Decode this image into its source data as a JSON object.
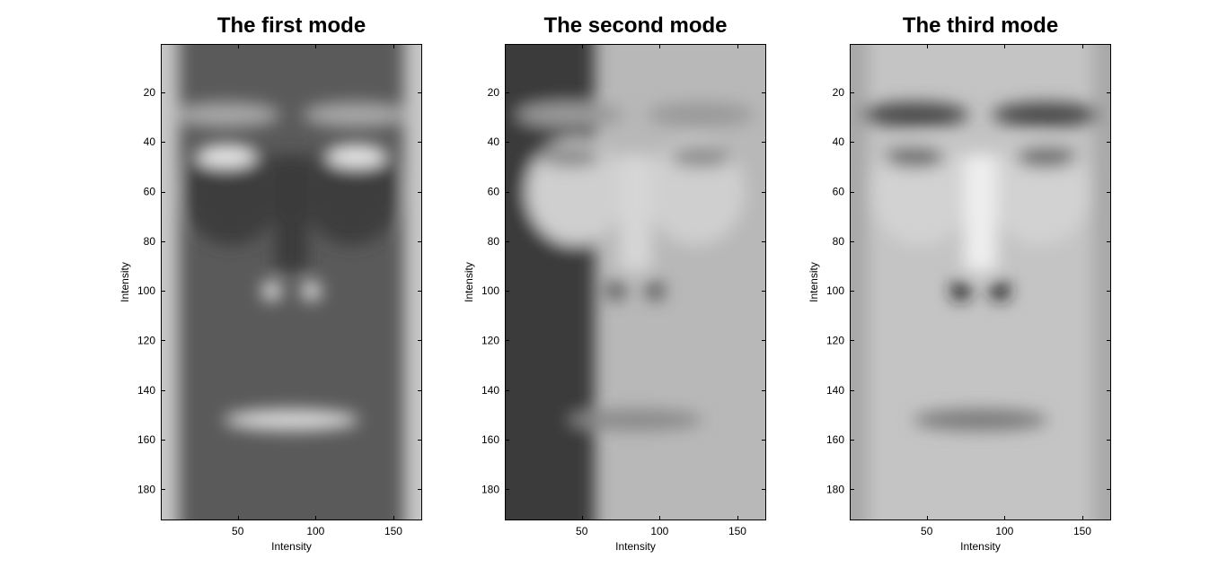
{
  "chart_data": [
    {
      "type": "heatmap",
      "title": "The first mode",
      "xlabel": "Intensity",
      "ylabel": "Intensity",
      "xlim": [
        0.5,
        168.5
      ],
      "ylim": [
        0.5,
        192.5
      ],
      "y_reversed": true,
      "xticks": [
        50,
        100,
        150
      ],
      "yticks": [
        20,
        40,
        60,
        80,
        100,
        120,
        140,
        160,
        180
      ],
      "colormap": "gray",
      "image": "face-eigenmode-1"
    },
    {
      "type": "heatmap",
      "title": "The second mode",
      "xlabel": "Intensity",
      "ylabel": "Intensity",
      "xlim": [
        0.5,
        168.5
      ],
      "ylim": [
        0.5,
        192.5
      ],
      "y_reversed": true,
      "xticks": [
        50,
        100,
        150
      ],
      "yticks": [
        20,
        40,
        60,
        80,
        100,
        120,
        140,
        160,
        180
      ],
      "colormap": "gray",
      "image": "face-eigenmode-2"
    },
    {
      "type": "heatmap",
      "title": "The third mode",
      "xlabel": "Intensity",
      "ylabel": "Intensity",
      "xlim": [
        0.5,
        168.5
      ],
      "ylim": [
        0.5,
        192.5
      ],
      "y_reversed": true,
      "xticks": [
        50,
        100,
        150
      ],
      "yticks": [
        20,
        40,
        60,
        80,
        100,
        120,
        140,
        160,
        180
      ],
      "colormap": "gray",
      "image": "face-eigenmode-3"
    }
  ]
}
